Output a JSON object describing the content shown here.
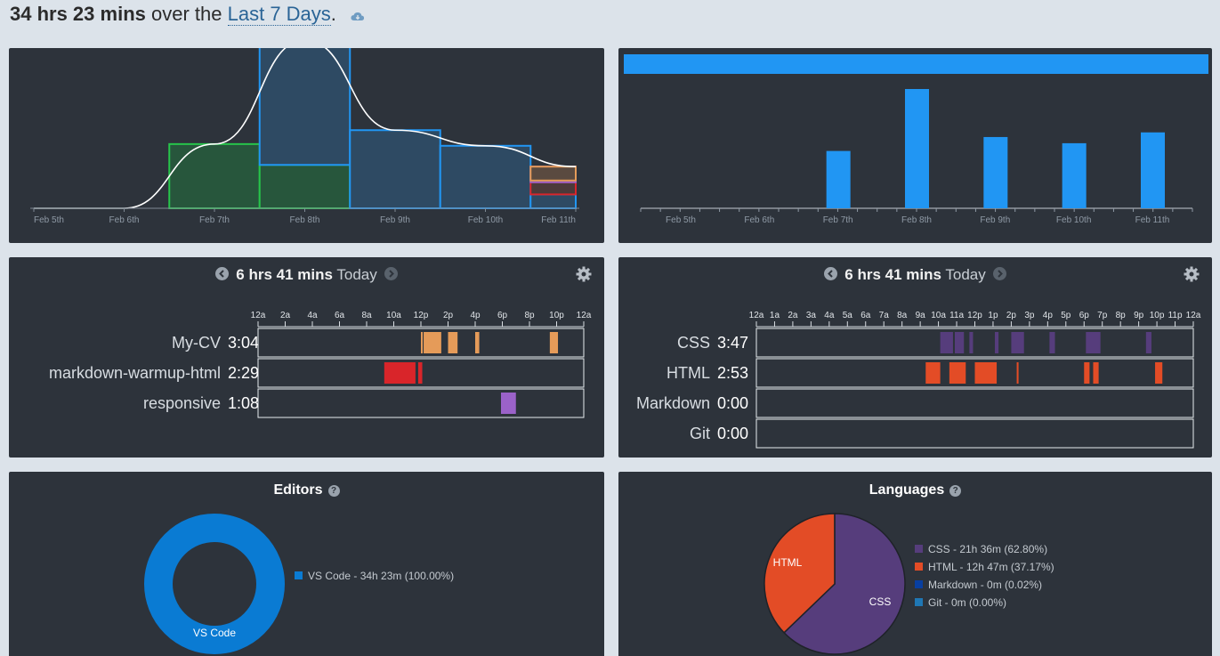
{
  "header": {
    "total": "34 hrs 23 mins",
    "over_the": "over the",
    "range_link": "Last 7 Days",
    "period": "."
  },
  "colors": {
    "panel_bg": "#2d333b",
    "blue": "#2196f3",
    "my_cv": "#e59b59",
    "markdown_warmup": "#d9252a",
    "responsive": "#9b62c9",
    "css": "#563d7c",
    "html": "#e34c26",
    "markdown": "#083fa1",
    "git": "#1f77b4",
    "vscode": "#0a7bd3"
  },
  "chart_data": [
    {
      "type": "area",
      "title": "",
      "categories": [
        "Feb 5th",
        "Feb 6th",
        "Feb 7th",
        "Feb 8th",
        "Feb 9th",
        "Feb 10th",
        "Feb 11th"
      ],
      "series": [
        {
          "values": [
            0,
            0,
            3.7,
            2.5,
            0,
            0,
            0
          ]
        },
        {
          "values": [
            0,
            0,
            0,
            7.2,
            4.5,
            3.6,
            0.8
          ]
        },
        {
          "values": [
            0,
            0,
            0,
            0,
            0,
            0,
            0.7
          ]
        },
        {
          "values": [
            0,
            0,
            0,
            0,
            0,
            0,
            0.9
          ]
        }
      ],
      "grid": false
    },
    {
      "type": "bar",
      "title": "",
      "categories": [
        "Feb 5th",
        "Feb 6th",
        "Feb 7th",
        "Feb 8th",
        "Feb 9th",
        "Feb 10th",
        "Feb 11th"
      ],
      "values": [
        0,
        0,
        3.7,
        7.7,
        4.6,
        4.2,
        4.9
      ],
      "grid": false
    },
    {
      "type": "pie",
      "title": "Editors",
      "categories": [
        "VS Code"
      ],
      "values": [
        100.0
      ],
      "legend": [
        "VS Code - 34h 23m (100.00%)"
      ]
    },
    {
      "type": "pie",
      "title": "Languages",
      "categories": [
        "CSS",
        "HTML",
        "Markdown",
        "Git"
      ],
      "values": [
        62.8,
        37.17,
        0.02,
        0.0
      ],
      "legend": [
        "CSS - 21h 36m (62.80%)",
        "HTML - 12h 47m (37.17%)",
        "Markdown - 0m (0.02%)",
        "Git - 0m (0.00%)"
      ]
    }
  ],
  "projects_day": {
    "total": "6 hrs 41 mins",
    "label": "Today",
    "ticks": [
      "12a",
      "2a",
      "4a",
      "6a",
      "8a",
      "10a",
      "12p",
      "2p",
      "4p",
      "6p",
      "8p",
      "10p",
      "12a"
    ],
    "rows": [
      {
        "name": "My-CV",
        "time": "3:04",
        "spans": [
          [
            12.0,
            12.1
          ],
          [
            12.2,
            13.5
          ],
          [
            14.0,
            14.7
          ],
          [
            16.0,
            16.3
          ],
          [
            21.5,
            22.1
          ]
        ]
      },
      {
        "name": "markdown-warmup-html",
        "time": "2:29",
        "spans": [
          [
            9.3,
            11.6
          ],
          [
            11.8,
            12.1
          ]
        ]
      },
      {
        "name": "responsive",
        "time": "1:08",
        "spans": [
          [
            17.9,
            19.0
          ]
        ]
      }
    ]
  },
  "languages_day": {
    "total": "6 hrs 41 mins",
    "label": "Today",
    "ticks": [
      "12a",
      "1a",
      "2a",
      "3a",
      "4a",
      "5a",
      "6a",
      "7a",
      "8a",
      "9a",
      "10a",
      "11a",
      "12p",
      "1p",
      "2p",
      "3p",
      "4p",
      "5p",
      "6p",
      "7p",
      "8p",
      "9p",
      "10p",
      "11p",
      "12a"
    ],
    "rows": [
      {
        "name": "CSS",
        "time": "3:47",
        "spans": [
          [
            10.1,
            10.8
          ],
          [
            10.9,
            11.4
          ],
          [
            11.7,
            11.9
          ],
          [
            13.1,
            13.3
          ],
          [
            14.0,
            14.7
          ],
          [
            16.1,
            16.4
          ],
          [
            18.1,
            18.9
          ],
          [
            21.4,
            21.7
          ]
        ]
      },
      {
        "name": "HTML",
        "time": "2:53",
        "spans": [
          [
            9.3,
            10.1
          ],
          [
            10.6,
            11.5
          ],
          [
            12.0,
            13.2
          ],
          [
            14.3,
            14.4
          ],
          [
            18.0,
            18.3
          ],
          [
            18.5,
            18.8
          ],
          [
            21.9,
            22.3
          ]
        ]
      },
      {
        "name": "Markdown",
        "time": "0:00",
        "spans": []
      },
      {
        "name": "Git",
        "time": "0:00",
        "spans": []
      }
    ]
  },
  "editors": {
    "title": "Editors",
    "donut_label": "VS Code",
    "legend": [
      "VS Code - 34h 23m (100.00%)"
    ]
  },
  "languages": {
    "title": "Languages",
    "slice_labels": [
      "HTML",
      "CSS"
    ],
    "legend": [
      "CSS - 21h 36m (62.80%)",
      "HTML - 12h 47m (37.17%)",
      "Markdown - 0m (0.02%)",
      "Git - 0m (0.00%)"
    ]
  }
}
